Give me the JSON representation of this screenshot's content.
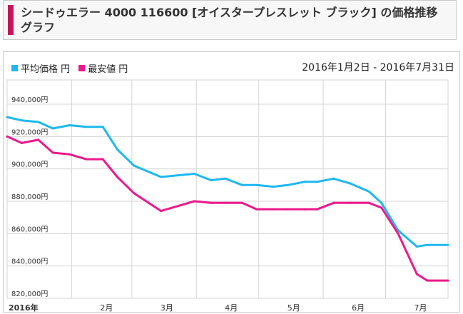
{
  "title": "シードゥエラー 4000 116600 [オイスタープレスレット ブラック] の価格推移グラフ",
  "legend": {
    "series1_label": "平均価格 円",
    "series2_label": "最安値 円"
  },
  "date_range": "2016年1月2日 - 2016年7月31日",
  "colors": {
    "average": "#1eb8f0",
    "lowest": "#ec198c",
    "grid": "#d4d4d4",
    "accent": "#c2185b"
  },
  "chart_data": {
    "type": "line",
    "title": "シードゥエラー 4000 116600 [オイスタープレスレット ブラック] の価格推移グラフ",
    "xlabel": "",
    "ylabel": "",
    "ylim": [
      820000,
      955000
    ],
    "xlim": [
      1,
      213
    ],
    "y_ticks": [
      {
        "value": 820000,
        "label": "820,000円"
      },
      {
        "value": 840000,
        "label": "840,000円"
      },
      {
        "value": 860000,
        "label": "860,000円"
      },
      {
        "value": 880000,
        "label": "880,000円"
      },
      {
        "value": 900000,
        "label": "900,000円"
      },
      {
        "value": 920000,
        "label": "920,000円"
      },
      {
        "value": 940000,
        "label": "940,000円"
      }
    ],
    "x_ticks": [
      {
        "day": 1,
        "label": "2016年",
        "bold": true
      },
      {
        "day": 32,
        "label": "2月",
        "bold": false
      },
      {
        "day": 61,
        "label": "3月",
        "bold": false
      },
      {
        "day": 92,
        "label": "4月",
        "bold": false
      },
      {
        "day": 122,
        "label": "5月",
        "bold": false
      },
      {
        "day": 153,
        "label": "6月",
        "bold": false
      },
      {
        "day": 183,
        "label": "7月",
        "bold": false
      }
    ],
    "series": [
      {
        "name": "平均価格 円",
        "color": "#1eb8f0",
        "x": [
          1,
          8,
          16,
          23,
          31,
          39,
          47,
          54,
          62,
          75,
          91,
          99,
          106,
          114,
          121,
          129,
          136,
          144,
          150,
          158,
          166,
          175,
          181,
          189,
          198,
          203,
          213
        ],
        "values": [
          932000,
          930000,
          929000,
          925000,
          927000,
          926000,
          926000,
          912000,
          902000,
          895000,
          897000,
          893000,
          894000,
          890000,
          890000,
          889000,
          890000,
          892000,
          892000,
          894000,
          891000,
          886000,
          879000,
          862000,
          852000,
          853000,
          853000
        ]
      },
      {
        "name": "最安値 円",
        "color": "#ec198c",
        "x": [
          1,
          8,
          16,
          23,
          31,
          39,
          47,
          54,
          62,
          75,
          91,
          99,
          106,
          114,
          121,
          129,
          136,
          144,
          150,
          158,
          166,
          175,
          181,
          189,
          198,
          203,
          213
        ],
        "values": [
          920000,
          916000,
          918000,
          910000,
          909000,
          906000,
          906000,
          895000,
          885000,
          874000,
          880000,
          879000,
          879000,
          879000,
          875000,
          875000,
          875000,
          875000,
          875000,
          879000,
          879000,
          879000,
          876000,
          860000,
          835000,
          831000,
          831000
        ]
      }
    ]
  }
}
